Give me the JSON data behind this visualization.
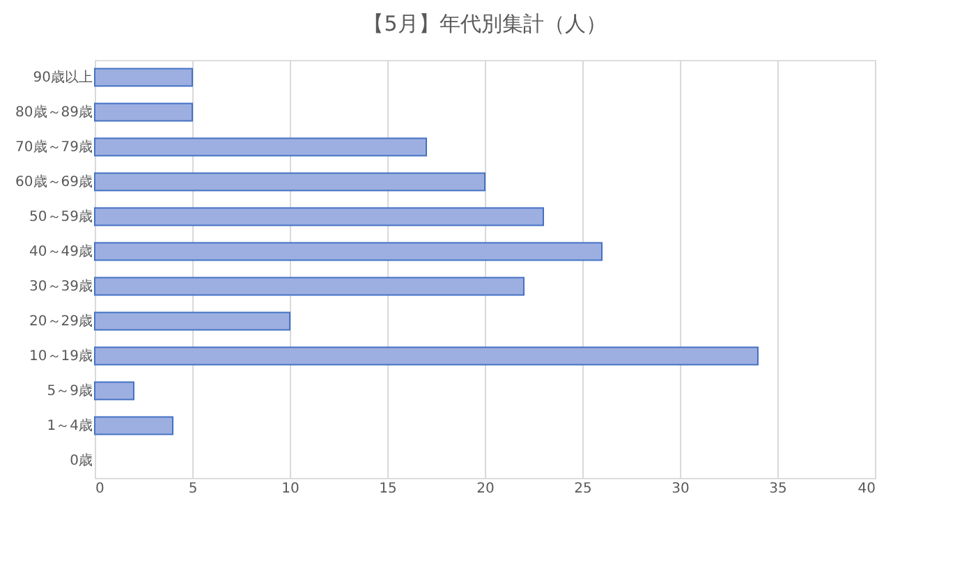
{
  "chart_data": {
    "type": "bar",
    "orientation": "horizontal",
    "title": "【5月】年代別集計（人）",
    "categories": [
      "90歳以上",
      "80歳～89歳",
      "70歳～79歳",
      "60歳～69歳",
      "50～59歳",
      "40～49歳",
      "30～39歳",
      "20～29歳",
      "10～19歳",
      "5～9歳",
      "1～4歳",
      "0歳"
    ],
    "values": [
      5,
      5,
      17,
      20,
      23,
      26,
      22,
      10,
      34,
      2,
      4,
      0
    ],
    "color": "#9dafe0",
    "xlim": [
      0,
      40
    ],
    "xticks": [
      0,
      5,
      10,
      15,
      20,
      25,
      30,
      35,
      40
    ],
    "grid": "x"
  }
}
